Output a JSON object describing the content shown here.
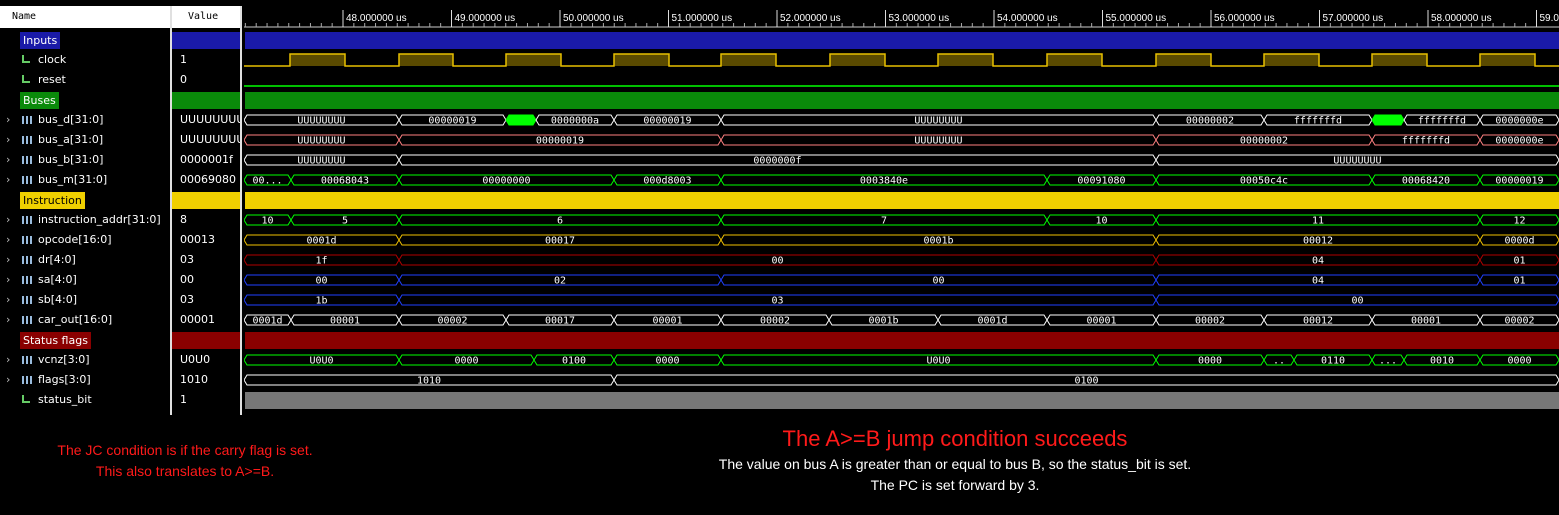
{
  "headers": {
    "name": "Name",
    "value": "Value"
  },
  "ruler": {
    "labels": [
      "48.000000 us",
      "49.000000 us",
      "50.000000 us",
      "51.000000 us",
      "52.000000 us",
      "53.000000 us",
      "54.000000 us",
      "55.000000 us",
      "56.000000 us",
      "57.000000 us",
      "58.000000 us",
      "59.0"
    ]
  },
  "rows": [
    {
      "type": "group",
      "name": "Inputs",
      "value": "",
      "color": "#1a1aa8"
    },
    {
      "type": "bit",
      "name": "clock",
      "value": "1"
    },
    {
      "type": "bit",
      "name": "reset",
      "value": "0"
    },
    {
      "type": "group",
      "name": "Buses",
      "value": "",
      "color": "#0a8a0a"
    },
    {
      "type": "bus",
      "name": "bus_d[31:0]",
      "value": "UUUUUUUU"
    },
    {
      "type": "bus",
      "name": "bus_a[31:0]",
      "value": "UUUUUUUU"
    },
    {
      "type": "bus",
      "name": "bus_b[31:0]",
      "value": "0000001f"
    },
    {
      "type": "bus",
      "name": "bus_m[31:0]",
      "value": "00069080"
    },
    {
      "type": "group",
      "name": "Instruction",
      "value": "",
      "color": "#f0d000"
    },
    {
      "type": "bus",
      "name": "instruction_addr[31:0]",
      "value": "8"
    },
    {
      "type": "bus",
      "name": "opcode[16:0]",
      "value": "00013"
    },
    {
      "type": "bus",
      "name": "dr[4:0]",
      "value": "03"
    },
    {
      "type": "bus",
      "name": "sa[4:0]",
      "value": "00"
    },
    {
      "type": "bus",
      "name": "sb[4:0]",
      "value": "03"
    },
    {
      "type": "bus",
      "name": "car_out[16:0]",
      "value": "00001"
    },
    {
      "type": "group",
      "name": "Status flags",
      "value": "",
      "color": "#8a0000"
    },
    {
      "type": "bus",
      "name": "vcnz[3:0]",
      "value": "U0U0"
    },
    {
      "type": "bus",
      "name": "flags[3:0]",
      "value": "1010"
    },
    {
      "type": "bit",
      "name": "status_bit",
      "value": "1"
    }
  ],
  "waves": [
    {
      "row": 0,
      "kind": "bar",
      "color": "#1a1aa8"
    },
    {
      "row": 1,
      "kind": "clock"
    },
    {
      "row": 2,
      "kind": "low"
    },
    {
      "row": 3,
      "kind": "bar",
      "color": "#0a8a0a"
    },
    {
      "row": 4,
      "kind": "bus",
      "color": "#ffffff",
      "segs": [
        {
          "x0": 0,
          "x1": 155,
          "label": "UUUUUUUU"
        },
        {
          "x0": 155,
          "x1": 262,
          "label": "00000019"
        },
        {
          "x0": 262,
          "x1": 292,
          "label": "",
          "fill": "#00ff00"
        },
        {
          "x0": 292,
          "x1": 370,
          "label": "0000000a"
        },
        {
          "x0": 370,
          "x1": 477,
          "label": "00000019"
        },
        {
          "x0": 477,
          "x1": 912,
          "label": "UUUUUUUU"
        },
        {
          "x0": 912,
          "x1": 1020,
          "label": "00000002"
        },
        {
          "x0": 1020,
          "x1": 1128,
          "label": "fffffffd"
        },
        {
          "x0": 1128,
          "x1": 1160,
          "label": "",
          "fill": "#00ff00"
        },
        {
          "x0": 1160,
          "x1": 1236,
          "label": "fffffffd"
        },
        {
          "x0": 1236,
          "x1": 1315,
          "label": "0000000e"
        }
      ]
    },
    {
      "row": 5,
      "kind": "bus",
      "color": "#ff8080",
      "segs": [
        {
          "x0": 0,
          "x1": 155,
          "label": "UUUUUUUU"
        },
        {
          "x0": 155,
          "x1": 477,
          "label": "00000019"
        },
        {
          "x0": 477,
          "x1": 912,
          "label": "UUUUUUUU"
        },
        {
          "x0": 912,
          "x1": 1128,
          "label": "00000002"
        },
        {
          "x0": 1128,
          "x1": 1236,
          "label": "fffffffd"
        },
        {
          "x0": 1236,
          "x1": 1315,
          "label": "0000000e"
        }
      ]
    },
    {
      "row": 6,
      "kind": "bus",
      "color": "#ffffff",
      "segs": [
        {
          "x0": 0,
          "x1": 155,
          "label": "UUUUUUUU"
        },
        {
          "x0": 155,
          "x1": 912,
          "label": "0000000f"
        },
        {
          "x0": 912,
          "x1": 1315,
          "label": "UUUUUUUU"
        }
      ]
    },
    {
      "row": 7,
      "kind": "bus",
      "color": "#00ff00",
      "segs": [
        {
          "x0": 0,
          "x1": 47,
          "label": "00..."
        },
        {
          "x0": 47,
          "x1": 155,
          "label": "00068043"
        },
        {
          "x0": 155,
          "x1": 370,
          "label": "00000000"
        },
        {
          "x0": 370,
          "x1": 477,
          "label": "000d8003"
        },
        {
          "x0": 477,
          "x1": 803,
          "label": "0003840e"
        },
        {
          "x0": 803,
          "x1": 912,
          "label": "00091080"
        },
        {
          "x0": 912,
          "x1": 1128,
          "label": "00050c4c"
        },
        {
          "x0": 1128,
          "x1": 1236,
          "label": "00068420"
        },
        {
          "x0": 1236,
          "x1": 1315,
          "label": "00000019"
        }
      ]
    },
    {
      "row": 8,
      "kind": "bar",
      "color": "#f0d000"
    },
    {
      "row": 9,
      "kind": "bus",
      "color": "#00ff00",
      "segs": [
        {
          "x0": 0,
          "x1": 47,
          "label": "10"
        },
        {
          "x0": 47,
          "x1": 155,
          "label": "5"
        },
        {
          "x0": 155,
          "x1": 477,
          "label": "6"
        },
        {
          "x0": 477,
          "x1": 803,
          "label": "7"
        },
        {
          "x0": 803,
          "x1": 912,
          "label": "10"
        },
        {
          "x0": 912,
          "x1": 1236,
          "label": "11"
        },
        {
          "x0": 1236,
          "x1": 1315,
          "label": "12"
        }
      ]
    },
    {
      "row": 10,
      "kind": "bus",
      "color": "#f0c000",
      "segs": [
        {
          "x0": 0,
          "x1": 155,
          "label": "0001d"
        },
        {
          "x0": 155,
          "x1": 477,
          "label": "00017"
        },
        {
          "x0": 477,
          "x1": 912,
          "label": "0001b"
        },
        {
          "x0": 912,
          "x1": 1236,
          "label": "00012"
        },
        {
          "x0": 1236,
          "x1": 1315,
          "label": "0000d"
        }
      ]
    },
    {
      "row": 11,
      "kind": "bus",
      "color": "#b00000",
      "segs": [
        {
          "x0": 0,
          "x1": 155,
          "label": "1f"
        },
        {
          "x0": 155,
          "x1": 912,
          "label": "00"
        },
        {
          "x0": 912,
          "x1": 1236,
          "label": "04"
        },
        {
          "x0": 1236,
          "x1": 1315,
          "label": "01"
        }
      ]
    },
    {
      "row": 12,
      "kind": "bus",
      "color": "#2040ff",
      "segs": [
        {
          "x0": 0,
          "x1": 155,
          "label": "00"
        },
        {
          "x0": 155,
          "x1": 477,
          "label": "02"
        },
        {
          "x0": 477,
          "x1": 912,
          "label": "00"
        },
        {
          "x0": 912,
          "x1": 1236,
          "label": "04"
        },
        {
          "x0": 1236,
          "x1": 1315,
          "label": "01"
        }
      ]
    },
    {
      "row": 13,
      "kind": "bus",
      "color": "#2040ff",
      "segs": [
        {
          "x0": 0,
          "x1": 155,
          "label": "1b"
        },
        {
          "x0": 155,
          "x1": 912,
          "label": "03"
        },
        {
          "x0": 912,
          "x1": 1315,
          "label": "00"
        }
      ]
    },
    {
      "row": 14,
      "kind": "bus",
      "color": "#ffffff",
      "segs": [
        {
          "x0": 0,
          "x1": 47,
          "label": "0001d"
        },
        {
          "x0": 47,
          "x1": 155,
          "label": "00001"
        },
        {
          "x0": 155,
          "x1": 262,
          "label": "00002"
        },
        {
          "x0": 262,
          "x1": 370,
          "label": "00017"
        },
        {
          "x0": 370,
          "x1": 477,
          "label": "00001"
        },
        {
          "x0": 477,
          "x1": 585,
          "label": "00002"
        },
        {
          "x0": 585,
          "x1": 694,
          "label": "0001b"
        },
        {
          "x0": 694,
          "x1": 803,
          "label": "0001d"
        },
        {
          "x0": 803,
          "x1": 912,
          "label": "00001"
        },
        {
          "x0": 912,
          "x1": 1020,
          "label": "00002"
        },
        {
          "x0": 1020,
          "x1": 1128,
          "label": "00012"
        },
        {
          "x0": 1128,
          "x1": 1236,
          "label": "00001"
        },
        {
          "x0": 1236,
          "x1": 1315,
          "label": "00002"
        }
      ]
    },
    {
      "row": 15,
      "kind": "bar",
      "color": "#8a0000"
    },
    {
      "row": 16,
      "kind": "bus",
      "color": "#00ff00",
      "segs": [
        {
          "x0": 0,
          "x1": 155,
          "label": "U0U0"
        },
        {
          "x0": 155,
          "x1": 290,
          "label": "0000"
        },
        {
          "x0": 290,
          "x1": 370,
          "label": "0100"
        },
        {
          "x0": 370,
          "x1": 477,
          "label": "0000"
        },
        {
          "x0": 477,
          "x1": 912,
          "label": "U0U0"
        },
        {
          "x0": 912,
          "x1": 1020,
          "label": "0000"
        },
        {
          "x0": 1020,
          "x1": 1050,
          "label": ".."
        },
        {
          "x0": 1050,
          "x1": 1128,
          "label": "0110"
        },
        {
          "x0": 1128,
          "x1": 1160,
          "label": "..."
        },
        {
          "x0": 1160,
          "x1": 1236,
          "label": "0010"
        },
        {
          "x0": 1236,
          "x1": 1315,
          "label": "0000"
        }
      ]
    },
    {
      "row": 17,
      "kind": "bus",
      "color": "#ffffff",
      "segs": [
        {
          "x0": 0,
          "x1": 370,
          "label": "1010"
        },
        {
          "x0": 370,
          "x1": 1315,
          "label": "0100"
        }
      ]
    },
    {
      "row": 18,
      "kind": "bar",
      "color": "#777777"
    }
  ],
  "annotations": {
    "left_line1": "The JC condition is if the carry flag is set.",
    "left_line2": "This also translates to A>=B.",
    "title": "The A>=B jump condition succeeds",
    "line1": "The value on bus A is greater than or equal to bus B, so the status_bit is set.",
    "line2": "The PC is set forward by 3."
  },
  "colors": {
    "annotation_red": "#ff1a1a",
    "background": "#000000"
  }
}
